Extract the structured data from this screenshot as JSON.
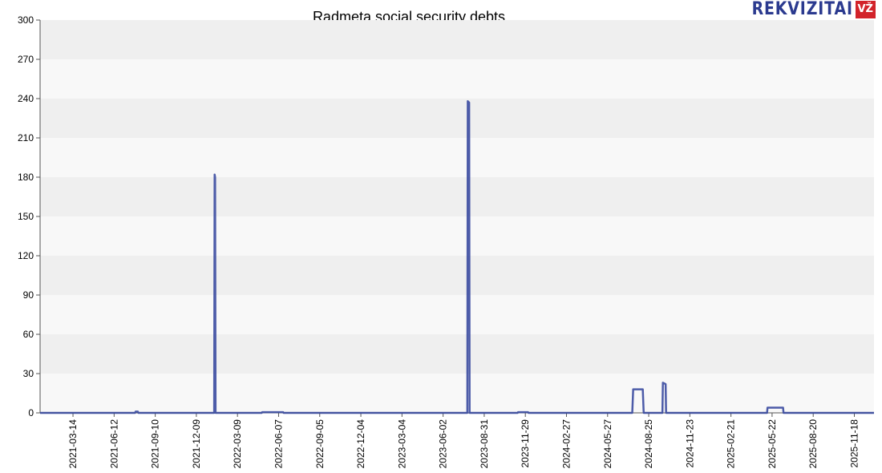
{
  "chart_data": {
    "type": "line",
    "title": "Radmeta social security debts",
    "xlabel": "",
    "ylabel": "",
    "ylim": [
      0,
      300
    ],
    "xlim": [
      "2021-01-01",
      "2025-12-31"
    ],
    "yticks": [
      0,
      30,
      60,
      90,
      120,
      150,
      180,
      210,
      240,
      270,
      300
    ],
    "xticks": [
      "2021-03-14",
      "2021-06-12",
      "2021-09-10",
      "2021-12-09",
      "2022-03-09",
      "2022-06-07",
      "2022-09-05",
      "2022-12-04",
      "2023-03-04",
      "2023-06-02",
      "2023-08-31",
      "2023-11-29",
      "2024-02-27",
      "2024-05-27",
      "2024-08-25",
      "2024-11-23",
      "2025-02-21",
      "2025-05-22",
      "2025-08-20",
      "2025-11-18"
    ],
    "grid": "horizontal bands",
    "colors": {
      "line": "#3a4aa0",
      "band_dark": "#efefef",
      "band_light": "#f8f8f8"
    },
    "series": [
      {
        "points": [
          [
            "2021-01-01",
            0
          ],
          [
            "2021-07-28",
            0
          ],
          [
            "2021-07-29",
            1
          ],
          [
            "2021-08-03",
            1
          ],
          [
            "2021-08-04",
            0
          ],
          [
            "2022-01-17",
            0
          ],
          [
            "2022-01-18",
            182
          ],
          [
            "2022-01-19",
            180
          ],
          [
            "2022-01-20",
            0
          ],
          [
            "2022-05-01",
            0
          ],
          [
            "2022-05-02",
            0.5
          ],
          [
            "2022-06-17",
            0.5
          ],
          [
            "2022-06-18",
            0
          ],
          [
            "2023-07-25",
            0
          ],
          [
            "2023-07-26",
            238
          ],
          [
            "2023-07-29",
            237
          ],
          [
            "2023-07-30",
            0
          ],
          [
            "2023-11-12",
            0
          ],
          [
            "2023-11-13",
            0.5
          ],
          [
            "2023-12-05",
            0.5
          ],
          [
            "2023-12-06",
            0
          ],
          [
            "2024-07-20",
            0
          ],
          [
            "2024-07-22",
            18
          ],
          [
            "2024-08-12",
            18
          ],
          [
            "2024-08-14",
            0
          ],
          [
            "2024-09-24",
            0
          ],
          [
            "2024-09-25",
            23
          ],
          [
            "2024-10-01",
            22
          ],
          [
            "2024-10-02",
            0
          ],
          [
            "2025-05-11",
            0
          ],
          [
            "2025-05-12",
            4
          ],
          [
            "2025-06-15",
            4
          ],
          [
            "2025-06-16",
            0
          ],
          [
            "2025-12-31",
            0
          ]
        ]
      }
    ]
  },
  "logo": {
    "text": "REKVIZITAI",
    "badge": "VŽ"
  }
}
